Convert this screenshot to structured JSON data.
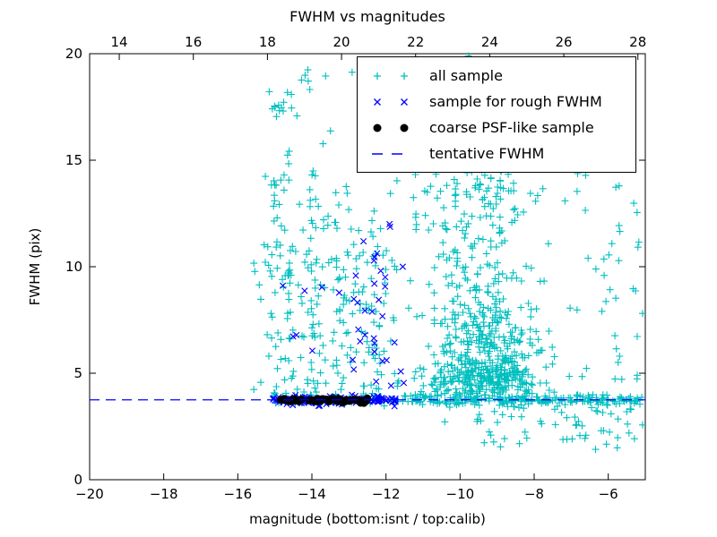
{
  "figure": {
    "title": "FWHM vs magnitudes",
    "xlabel": "magnitude (bottom:isnt / top:calib)",
    "ylabel": "FWHM (pix)"
  },
  "chart_data": {
    "type": "scatter",
    "title": "FWHM vs magnitudes",
    "xlabel": "magnitude (bottom:isnt / top:calib)",
    "ylabel": "FWHM (pix)",
    "xlim": [
      -20,
      -5
    ],
    "ylim": [
      0,
      20
    ],
    "xticks": [
      -20,
      -18,
      -16,
      -14,
      -12,
      -10,
      -8,
      -6
    ],
    "yticks": [
      0,
      5,
      10,
      15,
      20
    ],
    "top_axis": {
      "ticks": [
        14,
        16,
        18,
        20,
        22,
        24,
        26,
        28
      ],
      "offset_from_bottom": 33.2
    },
    "grid": false,
    "tentative_fwhm": 3.75,
    "line_color": "#0000ff",
    "seed": 9,
    "legend": {
      "position": "upper right",
      "items": [
        {
          "label": "all sample",
          "marker": "plus",
          "color": "#00bfbf"
        },
        {
          "label": "sample for rough FWHM",
          "marker": "x",
          "color": "#0000ff"
        },
        {
          "label": "coarse PSF-like sample",
          "marker": "dot",
          "color": "#000000"
        },
        {
          "label": "tentative FWHM",
          "marker": "dash",
          "color": "#0000ff"
        }
      ]
    },
    "series": [
      {
        "name": "all sample",
        "marker": "plus",
        "color": "#00bfbf",
        "clusters": [
          {
            "n": 250,
            "xd": "g",
            "x1": -9.4,
            "x2": 0.9,
            "yd": "g",
            "y1": 4.6,
            "y2": 0.55
          },
          {
            "n": 170,
            "xd": "g",
            "x1": -9.2,
            "x2": 0.75,
            "yd": "g",
            "y1": 6.0,
            "y2": 0.9
          },
          {
            "n": 110,
            "xd": "g",
            "x1": -9.45,
            "x2": 0.7,
            "yd": "g",
            "y1": 7.8,
            "y2": 1.1
          },
          {
            "n": 60,
            "xd": "g",
            "x1": -9.6,
            "x2": 0.75,
            "yd": "g",
            "y1": 10.3,
            "y2": 1.0
          },
          {
            "n": 90,
            "xd": "g",
            "x1": -9.3,
            "x2": 0.85,
            "yd": "g",
            "y1": 13.6,
            "y2": 1.1
          },
          {
            "n": 200,
            "xd": "u",
            "x1": -11.6,
            "x2": -5.05,
            "yd": "g",
            "y1": 3.75,
            "y2": 0.13
          },
          {
            "n": 60,
            "xd": "u",
            "x1": -15.1,
            "x2": -11.6,
            "yd": "g",
            "y1": 3.78,
            "y2": 0.15
          },
          {
            "n": 55,
            "xd": "u",
            "x1": -9.6,
            "x2": -5.05,
            "yd": "u",
            "y1": 1.4,
            "y2": 3.4
          },
          {
            "n": 45,
            "xd": "g",
            "x1": -14.6,
            "x2": 0.15,
            "yd": "u",
            "y1": 3.9,
            "y2": 19.2
          },
          {
            "n": 50,
            "xd": "g",
            "x1": -13.9,
            "x2": 0.18,
            "yd": "u",
            "y1": 3.9,
            "y2": 17.0
          },
          {
            "n": 40,
            "xd": "g",
            "x1": -13.15,
            "x2": 0.18,
            "yd": "u",
            "y1": 4.0,
            "y2": 14.0
          },
          {
            "n": 30,
            "xd": "g",
            "x1": -15.0,
            "x2": 0.12,
            "yd": "u",
            "y1": 4.0,
            "y2": 18.5
          },
          {
            "n": 45,
            "xd": "g",
            "x1": -12.45,
            "x2": 0.3,
            "yd": "u",
            "y1": 3.9,
            "y2": 13.5
          },
          {
            "n": 70,
            "xd": "u",
            "x1": -15.6,
            "x2": -11.7,
            "yd": "u",
            "y1": 4.0,
            "y2": 10.5
          },
          {
            "n": 30,
            "xd": "u",
            "x1": -8.2,
            "x2": -5.1,
            "yd": "u",
            "y1": 9.5,
            "y2": 16.0
          },
          {
            "n": 25,
            "xd": "u",
            "x1": -11.5,
            "x2": -9.8,
            "yd": "u",
            "y1": 10.5,
            "y2": 16.5
          },
          {
            "n": 8,
            "xd": "u",
            "x1": -14.2,
            "x2": -12.6,
            "yd": "u",
            "y1": 18.3,
            "y2": 19.6
          },
          {
            "n": 20,
            "xd": "u",
            "x1": -7.2,
            "x2": -5.05,
            "yd": "u",
            "y1": 4.3,
            "y2": 9.0
          },
          {
            "n": 5,
            "xd": "u",
            "x1": -10.9,
            "x2": -9.5,
            "yd": "u",
            "y1": 19.5,
            "y2": 19.9
          }
        ]
      },
      {
        "name": "sample for rough FWHM",
        "marker": "x",
        "color": "#0000ff",
        "clusters": [
          {
            "n": 150,
            "xd": "u",
            "x1": -15.05,
            "x2": -11.6,
            "yd": "g",
            "y1": 3.75,
            "y2": 0.1
          },
          {
            "n": 26,
            "xd": "g",
            "x1": -12.35,
            "x2": 0.45,
            "yd": "u",
            "y1": 4.3,
            "y2": 9.8
          },
          {
            "n": 8,
            "xd": "g",
            "x1": -12.25,
            "x2": 0.35,
            "yd": "u",
            "y1": 9.8,
            "y2": 12.0
          },
          {
            "n": 6,
            "xd": "u",
            "x1": -14.9,
            "x2": -13.6,
            "yd": "u",
            "y1": 4.2,
            "y2": 9.2
          }
        ]
      },
      {
        "name": "coarse PSF-like sample",
        "marker": "dot",
        "color": "#000000",
        "clusters": [
          {
            "n": 60,
            "xd": "u",
            "x1": -14.92,
            "x2": -12.48,
            "yd": "g",
            "y1": 3.73,
            "y2": 0.045
          }
        ]
      }
    ]
  }
}
